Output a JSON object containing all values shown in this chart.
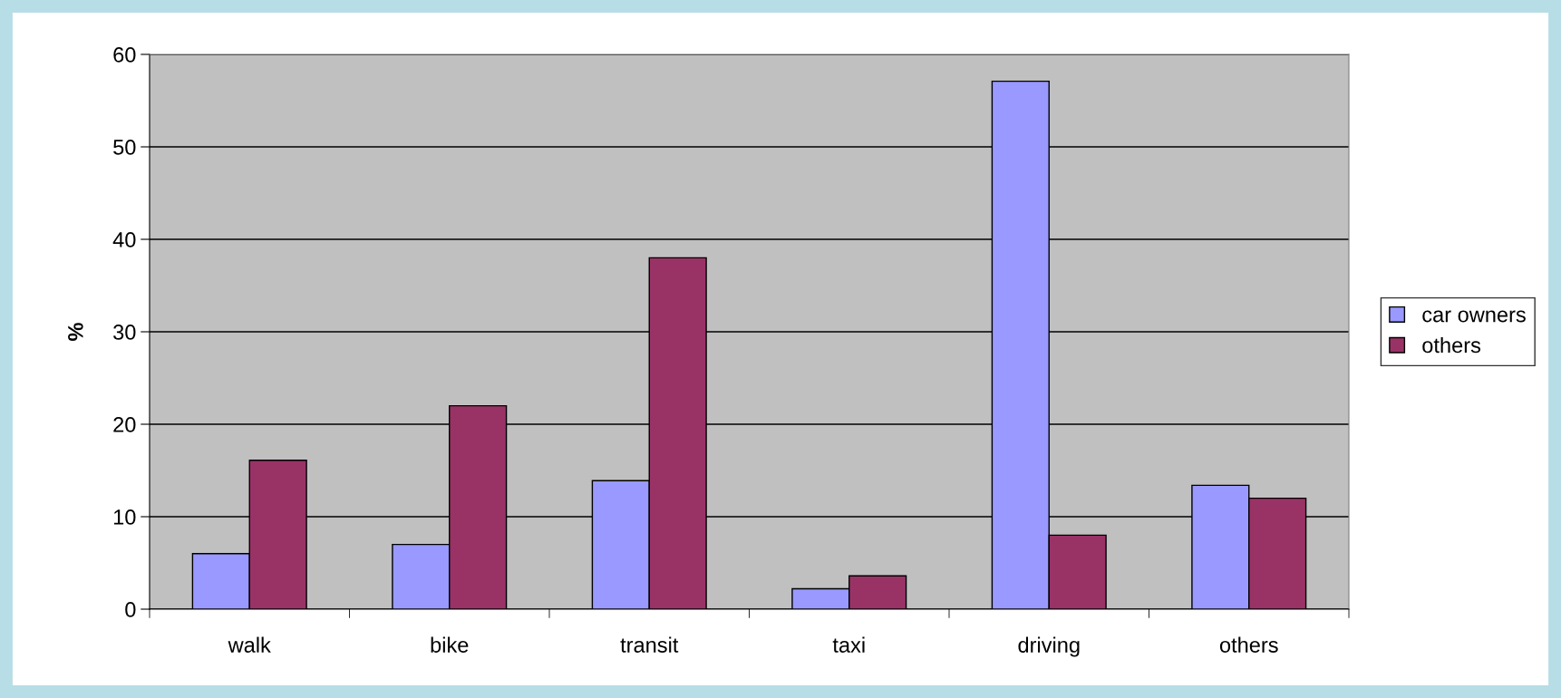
{
  "chart_data": {
    "type": "bar",
    "ylabel": "%",
    "categories": [
      "walk",
      "bike",
      "transit",
      "taxi",
      "driving",
      "others"
    ],
    "series": [
      {
        "name": "car owners",
        "color": "#9999ff",
        "values": [
          6,
          7,
          13.9,
          2.2,
          57.1,
          13.4
        ]
      },
      {
        "name": "others",
        "color": "#993366",
        "values": [
          16.1,
          22,
          38,
          3.6,
          8,
          12
        ]
      }
    ],
    "ylim": [
      0,
      60
    ],
    "yticks": [
      0,
      10,
      20,
      30,
      40,
      50,
      60
    ],
    "grid": "y",
    "legend": "right"
  }
}
